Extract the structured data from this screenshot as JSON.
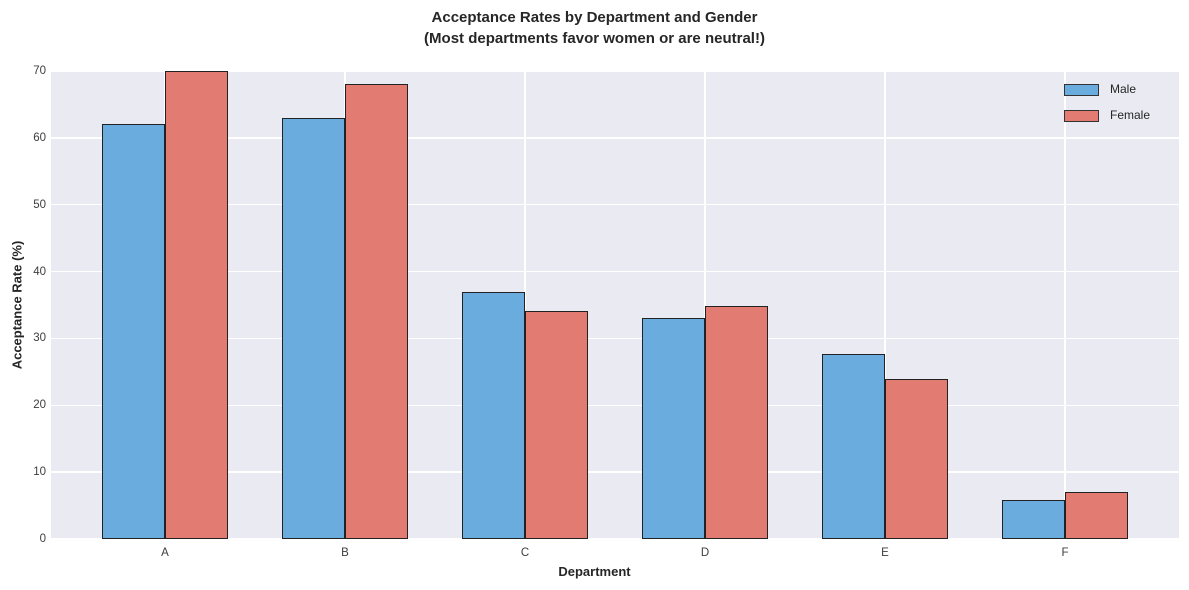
{
  "title": {
    "line1": "Acceptance Rates by Department and Gender",
    "line2": "(Most departments favor women or are neutral!)"
  },
  "chart_data": {
    "type": "bar",
    "title": "Acceptance Rates by Department and Gender\n(Most departments favor women or are neutral!)",
    "title_lines": [
      "Acceptance Rates by Department and Gender",
      "(Most departments favor women or are neutral!)"
    ],
    "xlabel": "Department",
    "ylabel": "Acceptance Rate (%)",
    "categories": [
      "A",
      "B",
      "C",
      "D",
      "E",
      "F"
    ],
    "series": [
      {
        "name": "Male",
        "color": "#69ACDD",
        "values": [
          62.1,
          63.0,
          36.9,
          33.1,
          27.7,
          5.9
        ]
      },
      {
        "name": "Female",
        "color": "#E27C73",
        "values": [
          70.0,
          68.0,
          34.1,
          34.9,
          23.9,
          7.0
        ]
      }
    ],
    "ylim": [
      0,
      70
    ],
    "yticks": [
      0,
      10,
      20,
      30,
      40,
      50,
      60,
      70
    ],
    "grid": true,
    "legend_position": "upper right",
    "colors": {
      "plot_background": "#EAEAF2",
      "grid": "#FFFFFF",
      "bar_edge": "#222222",
      "text": "#262626",
      "tick_text": "#3d3d3d"
    }
  },
  "legend": {
    "items": [
      {
        "label": "Male",
        "color": "#69ACDD"
      },
      {
        "label": "Female",
        "color": "#E27C73"
      }
    ]
  }
}
